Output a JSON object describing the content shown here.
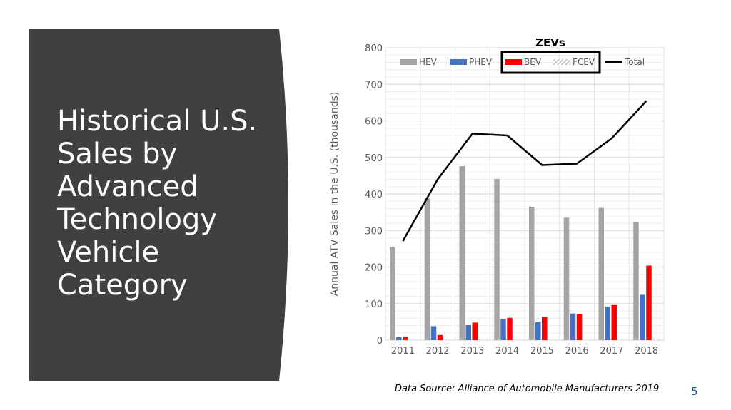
{
  "slide": {
    "title": "Historical U.S. Sales by Advanced Technology Vehicle Category",
    "source_note": "Data Source: Alliance of Automobile Manufacturers 2019",
    "page_number": "5",
    "panel_color": "#404040"
  },
  "chart_data": {
    "type": "bar",
    "title": "",
    "annotation": "ZEVs",
    "xlabel": "",
    "ylabel": "Annual ATV Sales in the U.S. (thousands)",
    "categories": [
      "2011",
      "2012",
      "2013",
      "2014",
      "2015",
      "2016",
      "2017",
      "2018"
    ],
    "ylim": [
      0,
      800
    ],
    "yticks": [
      0,
      100,
      200,
      300,
      400,
      500,
      600,
      700,
      800
    ],
    "grid": true,
    "legend_position": "top",
    "series": [
      {
        "name": "HEV",
        "kind": "bar",
        "color": "#a5a5a5",
        "values": [
          255,
          388,
          476,
          441,
          365,
          335,
          362,
          323
        ]
      },
      {
        "name": "PHEV",
        "kind": "bar",
        "color": "#4472c4",
        "values": [
          8,
          38,
          41,
          57,
          49,
          73,
          92,
          124
        ]
      },
      {
        "name": "BEV",
        "kind": "bar",
        "color": "#ff0000",
        "values": [
          10,
          14,
          48,
          61,
          64,
          72,
          96,
          204
        ]
      },
      {
        "name": "FCEV",
        "kind": "bar",
        "color": "#d9d9d9",
        "pattern": "hatch",
        "values": [
          0,
          0,
          0,
          0,
          0,
          1,
          2,
          2
        ]
      },
      {
        "name": "Total",
        "kind": "line",
        "color": "#000000",
        "values": [
          271,
          440,
          565,
          560,
          479,
          483,
          552,
          655
        ]
      }
    ]
  }
}
